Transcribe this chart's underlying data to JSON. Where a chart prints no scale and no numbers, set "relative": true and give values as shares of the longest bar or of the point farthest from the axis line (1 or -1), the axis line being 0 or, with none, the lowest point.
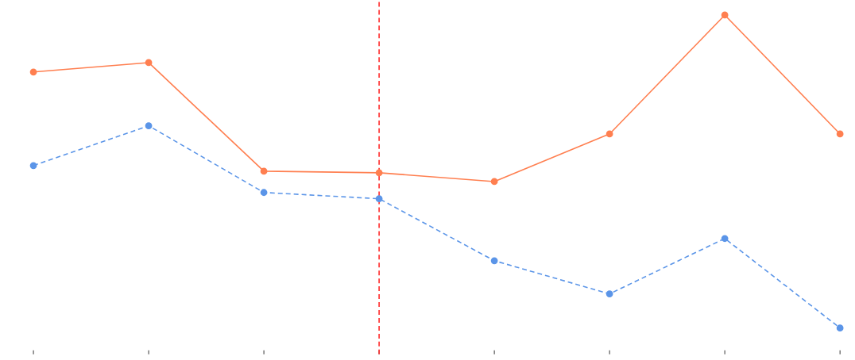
{
  "chart_data": {
    "type": "line",
    "relative": true,
    "categories": [
      null,
      null,
      null,
      null,
      null,
      null,
      null,
      null
    ],
    "series": [
      {
        "color": "#ff7f50",
        "line_style": "solid",
        "values": [
          0.818,
          0.848,
          0.501,
          0.496,
          0.468,
          0.62,
          1.0,
          0.62
        ]
      },
      {
        "color": "#5b95e8",
        "line_style": "dashed",
        "values": [
          0.519,
          0.646,
          0.433,
          0.413,
          0.215,
          0.109,
          0.286,
          0.0
        ]
      }
    ],
    "marker": "circle"
  }
}
